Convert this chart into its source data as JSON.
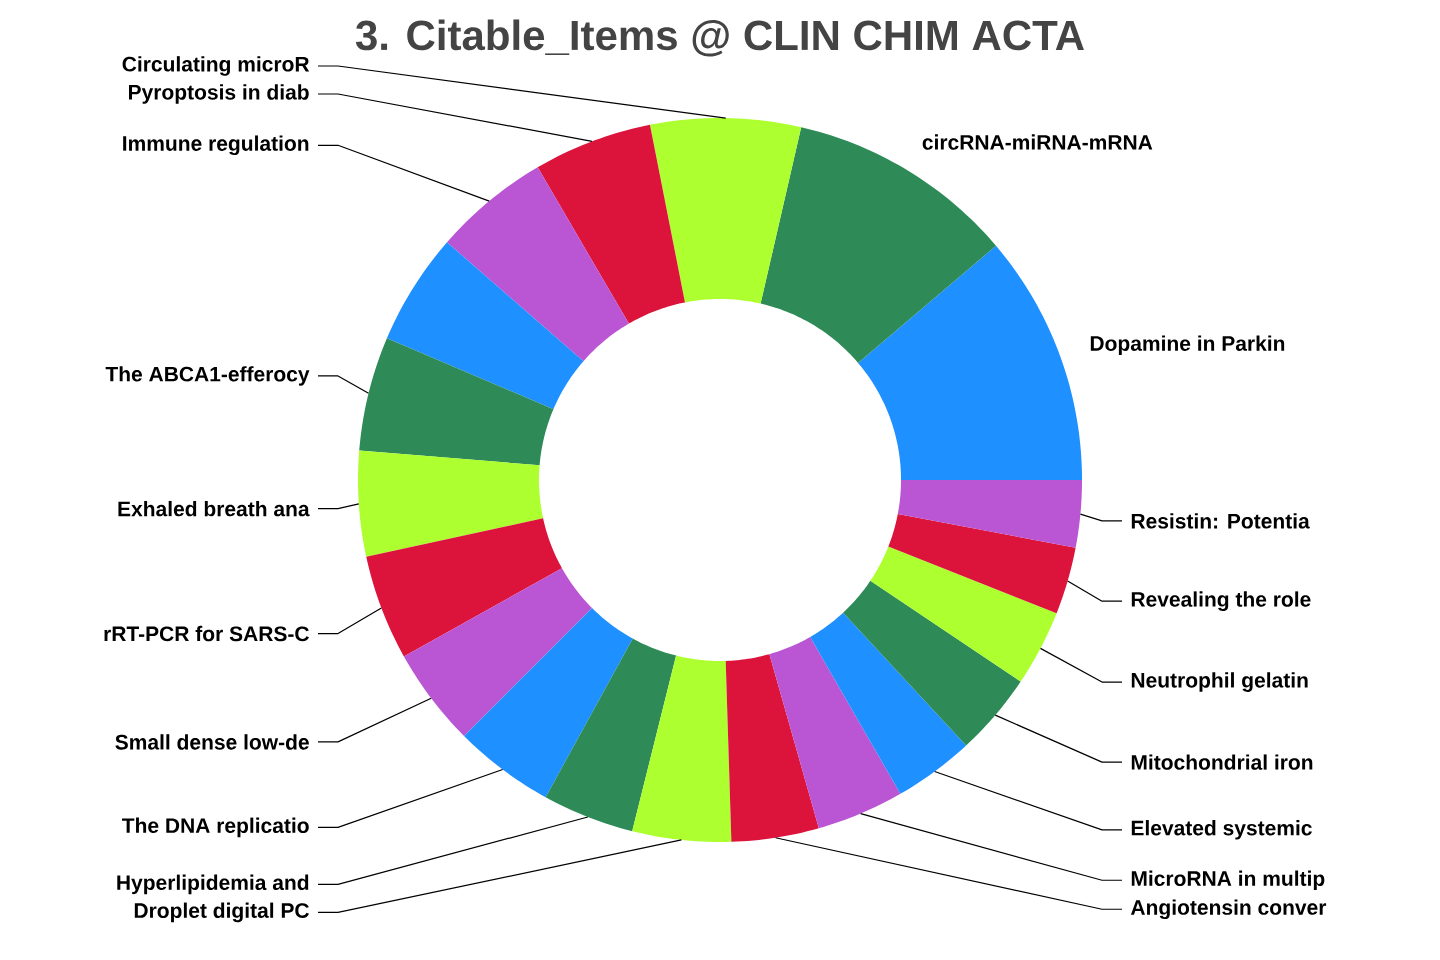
{
  "chart_data": {
    "type": "donut",
    "title": "3. Citable_Items @ CLIN CHIM ACTA",
    "categories": [
      "Dopamine in Parkin",
      "circRNA-miRNA-mRNA",
      "Circulating microR",
      "Pyroptosis in diab",
      "Immune regulation",
      null,
      "The ABCA1-efferocy",
      "Exhaled breath ana",
      "rRT-PCR for SARS-C",
      "Small dense low-de",
      "The DNA replicatio",
      "Hyperlipidemia and",
      "Droplet digital PC",
      "Angiotensin conver",
      "MicroRNA in multip",
      "Elevated systemic",
      "Mitochondrial iron",
      "Neutrophil gelatin",
      "Revealing the role",
      "Resistin: Potentia"
    ],
    "values": [
      11.2,
      10.2,
      6.7,
      5.3,
      5.2,
      5.0,
      5.1,
      4.7,
      4.7,
      4.4,
      4.5,
      4.1,
      4.4,
      3.9,
      3.9,
      3.6,
      3.7,
      3.4,
      3.0,
      3.0
    ],
    "colors": [
      "#1e90ff",
      "#2e8b57",
      "#adff2f",
      "#dc143c",
      "#ba55d3",
      "#1e90ff",
      "#2e8b57",
      "#adff2f",
      "#dc143c",
      "#ba55d3",
      "#1e90ff",
      "#2e8b57",
      "#adff2f",
      "#dc143c",
      "#ba55d3",
      "#1e90ff",
      "#2e8b57",
      "#adff2f",
      "#dc143c",
      "#ba55d3"
    ]
  }
}
